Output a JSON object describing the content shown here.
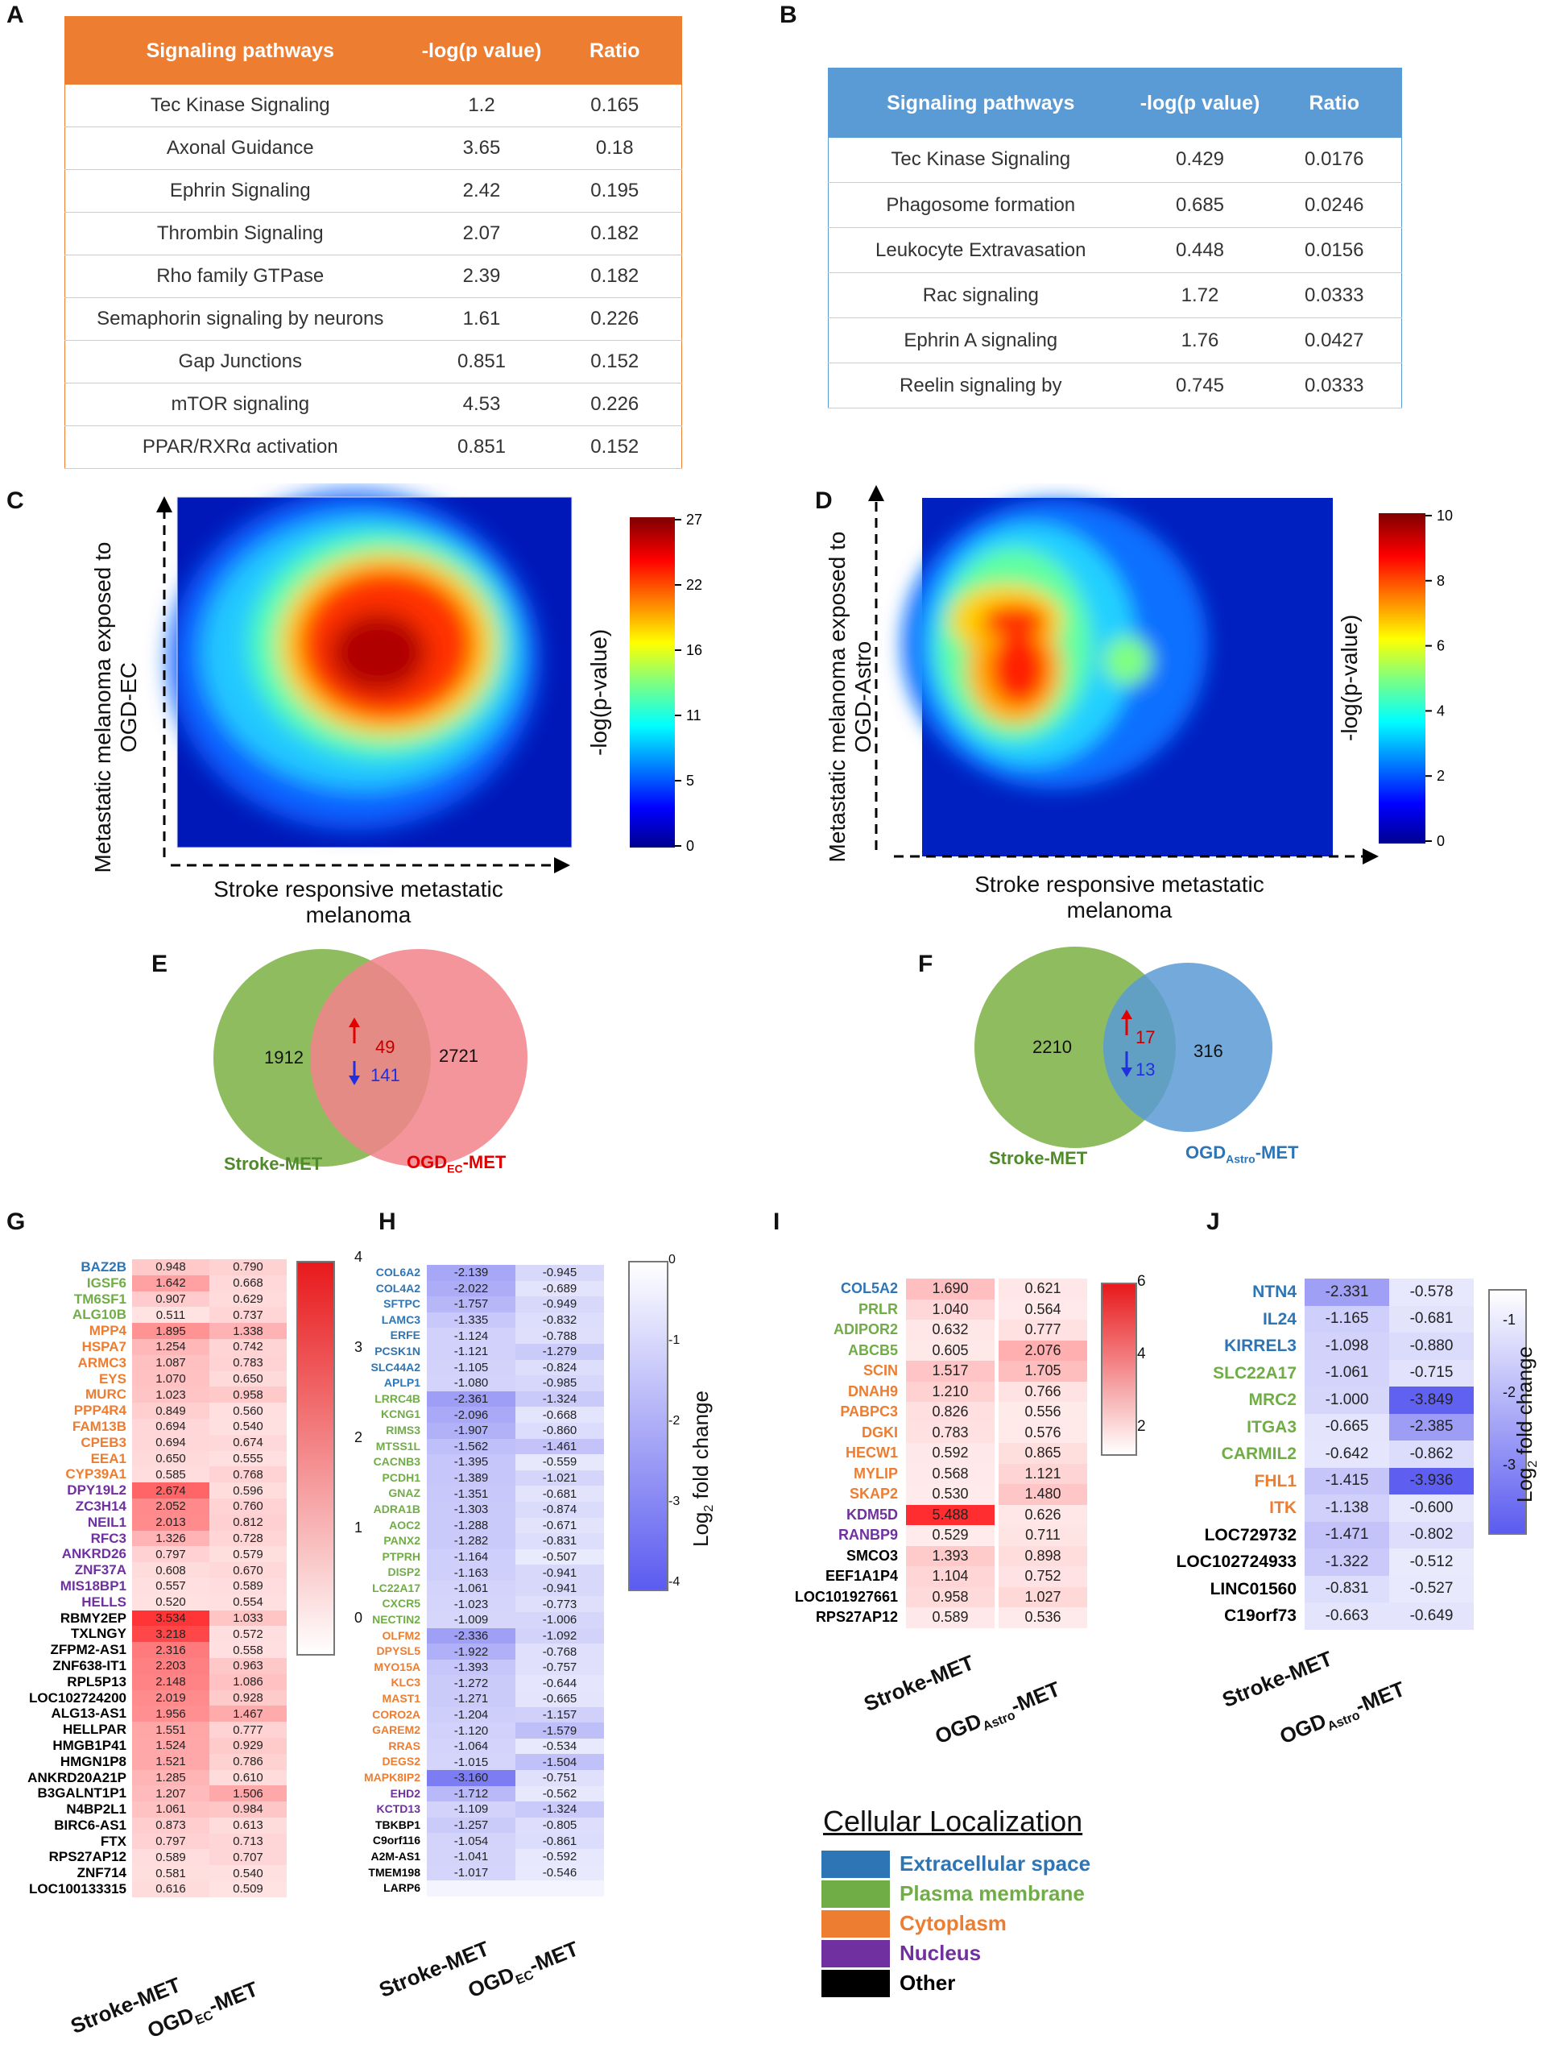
{
  "panels": {
    "A": "A",
    "B": "B",
    "C": "C",
    "D": "D",
    "E": "E",
    "F": "F",
    "G": "G",
    "H": "H",
    "I": "I",
    "J": "J"
  },
  "colors": {
    "orange": "#ed7d31",
    "blue": "#5b9bd5",
    "extracellular": "#2e75b6",
    "plasma": "#70ad47",
    "cytoplasm": "#ed7d31",
    "nucleus": "#7030a0",
    "other": "#000000",
    "venn_green": "#8fbc5f",
    "venn_red": "#f2838b",
    "venn_blue": "#5b9bd5"
  },
  "tableA": {
    "headers": [
      "Signaling  pathways",
      "-log(p value)",
      "Ratio"
    ],
    "rows": [
      [
        "Tec Kinase Signaling",
        "1.2",
        "0.165"
      ],
      [
        "Axonal Guidance",
        "3.65",
        "0.18"
      ],
      [
        "Ephrin Signaling",
        "2.42",
        "0.195"
      ],
      [
        "Thrombin Signaling",
        "2.07",
        "0.182"
      ],
      [
        "Rho family GTPase",
        "2.39",
        "0.182"
      ],
      [
        "Semaphorin signaling by neurons",
        "1.61",
        "0.226"
      ],
      [
        "Gap Junctions",
        "0.851",
        "0.152"
      ],
      [
        "mTOR  signaling",
        "4.53",
        "0.226"
      ],
      [
        "PPAR/RXRα  activation",
        "0.851",
        "0.152"
      ]
    ]
  },
  "tableB": {
    "headers": [
      "Signaling  pathways",
      "-log(p value)",
      "Ratio"
    ],
    "rows": [
      [
        "Tec Kinase Signaling",
        "0.429",
        "0.0176"
      ],
      [
        "Phagosome  formation",
        "0.685",
        "0.0246"
      ],
      [
        "Leukocyte Extravasation",
        "0.448",
        "0.0156"
      ],
      [
        "Rac signaling",
        "1.72",
        "0.0333"
      ],
      [
        "Ephrin A signaling",
        "1.76",
        "0.0427"
      ],
      [
        "Reelin signaling by",
        "0.745",
        "0.0333"
      ]
    ]
  },
  "panelC": {
    "ylabel1": "Metastatic melanoma exposed to",
    "ylabel2": "OGD-EC",
    "xlabel1": "Stroke responsive metastatic",
    "xlabel2": "melanoma",
    "cblabel": "-log(p-value)",
    "ticks": [
      "27",
      "22",
      "16",
      "11",
      "5",
      "0"
    ]
  },
  "panelD": {
    "ylabel1": "Metastatic melanoma exposed to",
    "ylabel2": "OGD-Astro",
    "xlabel1": "Stroke responsive metastatic",
    "xlabel2": "melanoma",
    "cblabel": "-log(p-value)",
    "ticks": [
      "10",
      "8",
      "6",
      "4",
      "2",
      "0"
    ]
  },
  "vennE": {
    "left": "1912",
    "up": "49",
    "down": "141",
    "right": "2721",
    "labelL": "Stroke-MET",
    "labelR_main": "OGD",
    "labelR_sub": "EC",
    "labelR_end": "-MET"
  },
  "vennF": {
    "left": "2210",
    "up": "17",
    "down": "13",
    "right": "316",
    "labelL": "Stroke-MET",
    "labelR_main": "OGD",
    "labelR_sub": "Astro",
    "labelR_end": "-MET"
  },
  "panelG": {
    "xlabels": [
      "Stroke-MET",
      "OGD",
      "EC",
      "-MET"
    ],
    "cbticks": [
      "4",
      "3",
      "2",
      "1",
      "0"
    ],
    "genes": [
      {
        "n": "BAZ2B",
        "c": "e",
        "a": "0.948",
        "b": "0.790"
      },
      {
        "n": "IGSF6",
        "c": "p",
        "a": "1.642",
        "b": "0.668"
      },
      {
        "n": "TM6SF1",
        "c": "p",
        "a": "0.907",
        "b": "0.629"
      },
      {
        "n": "ALG10B",
        "c": "p",
        "a": "0.511",
        "b": "0.737"
      },
      {
        "n": "MPP4",
        "c": "c",
        "a": "1.895",
        "b": "1.338"
      },
      {
        "n": "HSPA7",
        "c": "c",
        "a": "1.254",
        "b": "0.742"
      },
      {
        "n": "ARMC3",
        "c": "c",
        "a": "1.087",
        "b": "0.783"
      },
      {
        "n": "EYS",
        "c": "c",
        "a": "1.070",
        "b": "0.650"
      },
      {
        "n": "MURC",
        "c": "c",
        "a": "1.023",
        "b": "0.958"
      },
      {
        "n": "PPP4R4",
        "c": "c",
        "a": "0.849",
        "b": "0.560"
      },
      {
        "n": "FAM13B",
        "c": "c",
        "a": "0.694",
        "b": "0.540"
      },
      {
        "n": "CPEB3",
        "c": "c",
        "a": "0.694",
        "b": "0.674"
      },
      {
        "n": "EEA1",
        "c": "c",
        "a": "0.650",
        "b": "0.555"
      },
      {
        "n": "CYP39A1",
        "c": "c",
        "a": "0.585",
        "b": "0.768"
      },
      {
        "n": "DPY19L2",
        "c": "n",
        "a": "2.674",
        "b": "0.596"
      },
      {
        "n": "ZC3H14",
        "c": "n",
        "a": "2.052",
        "b": "0.760"
      },
      {
        "n": "NEIL1",
        "c": "n",
        "a": "2.013",
        "b": "0.812"
      },
      {
        "n": "RFC3",
        "c": "n",
        "a": "1.326",
        "b": "0.728"
      },
      {
        "n": "ANKRD26",
        "c": "n",
        "a": "0.797",
        "b": "0.579"
      },
      {
        "n": "ZNF37A",
        "c": "n",
        "a": "0.608",
        "b": "0.670"
      },
      {
        "n": "MIS18BP1",
        "c": "n",
        "a": "0.557",
        "b": "0.589"
      },
      {
        "n": "HELLS",
        "c": "n",
        "a": "0.520",
        "b": "0.554"
      },
      {
        "n": "RBMY2EP",
        "c": "o",
        "a": "3.534",
        "b": "1.033"
      },
      {
        "n": "TXLNGY",
        "c": "o",
        "a": "3.218",
        "b": "0.572"
      },
      {
        "n": "ZFPM2-AS1",
        "c": "o",
        "a": "2.316",
        "b": "0.558"
      },
      {
        "n": "ZNF638-IT1",
        "c": "o",
        "a": "2.203",
        "b": "0.963"
      },
      {
        "n": "RPL5P13",
        "c": "o",
        "a": "2.148",
        "b": "1.086"
      },
      {
        "n": "LOC102724200",
        "c": "o",
        "a": "2.019",
        "b": "0.928"
      },
      {
        "n": "ALG13-AS1",
        "c": "o",
        "a": "1.956",
        "b": "1.467"
      },
      {
        "n": "HELLPAR",
        "c": "o",
        "a": "1.551",
        "b": "0.777"
      },
      {
        "n": "HMGB1P41",
        "c": "o",
        "a": "1.524",
        "b": "0.929"
      },
      {
        "n": "HMGN1P8",
        "c": "o",
        "a": "1.521",
        "b": "0.786"
      },
      {
        "n": "ANKRD20A21P",
        "c": "o",
        "a": "1.285",
        "b": "0.610"
      },
      {
        "n": "B3GALNT1P1",
        "c": "o",
        "a": "1.207",
        "b": "1.506"
      },
      {
        "n": "N4BP2L1",
        "c": "o",
        "a": "1.061",
        "b": "0.984"
      },
      {
        "n": "BIRC6-AS1",
        "c": "o",
        "a": "0.873",
        "b": "0.613"
      },
      {
        "n": "FTX",
        "c": "o",
        "a": "0.797",
        "b": "0.713"
      },
      {
        "n": "RPS27AP12",
        "c": "o",
        "a": "0.589",
        "b": "0.707"
      },
      {
        "n": "ZNF714",
        "c": "o",
        "a": "0.581",
        "b": "0.540"
      },
      {
        "n": "LOC100133315",
        "c": "o",
        "a": "0.616",
        "b": "0.509"
      }
    ]
  },
  "panelH": {
    "xlabels": [
      "Stroke-MET",
      "OGD",
      "EC",
      "-MET"
    ],
    "cbticks": [
      "0",
      "-1",
      "-2",
      "-3",
      "-4"
    ],
    "cblabel_main": "Log",
    "cblabel_sub": "2",
    "cblabel_end": " fold change",
    "genes": [
      {
        "n": "COL6A2",
        "c": "e",
        "a": "-2.139",
        "b": "-0.945"
      },
      {
        "n": "COL4A2",
        "c": "e",
        "a": "-2.022",
        "b": "-0.689"
      },
      {
        "n": "SFTPC",
        "c": "e",
        "a": "-1.757",
        "b": "-0.949"
      },
      {
        "n": "LAMC3",
        "c": "e",
        "a": "-1.335",
        "b": "-0.832"
      },
      {
        "n": "ERFE",
        "c": "e",
        "a": "-1.124",
        "b": "-0.788"
      },
      {
        "n": "PCSK1N",
        "c": "e",
        "a": "-1.121",
        "b": "-1.279"
      },
      {
        "n": "SLC44A2",
        "c": "e",
        "a": "-1.105",
        "b": "-0.824"
      },
      {
        "n": "APLP1",
        "c": "e",
        "a": "-1.080",
        "b": "-0.985"
      },
      {
        "n": "LRRC4B",
        "c": "p",
        "a": "-2.361",
        "b": "-1.324"
      },
      {
        "n": "KCNG1",
        "c": "p",
        "a": "-2.096",
        "b": "-0.668"
      },
      {
        "n": "RIMS3",
        "c": "p",
        "a": "-1.907",
        "b": "-0.860"
      },
      {
        "n": "MTSS1L",
        "c": "p",
        "a": "-1.562",
        "b": "-1.461"
      },
      {
        "n": "CACNB3",
        "c": "p",
        "a": "-1.395",
        "b": "-0.559"
      },
      {
        "n": "PCDH1",
        "c": "p",
        "a": "-1.389",
        "b": "-1.021"
      },
      {
        "n": "GNAZ",
        "c": "p",
        "a": "-1.351",
        "b": "-0.681"
      },
      {
        "n": "ADRA1B",
        "c": "p",
        "a": "-1.303",
        "b": "-0.874"
      },
      {
        "n": "AOC2",
        "c": "p",
        "a": "-1.288",
        "b": "-0.671"
      },
      {
        "n": "PANX2",
        "c": "p",
        "a": "-1.282",
        "b": "-0.831"
      },
      {
        "n": "PTPRH",
        "c": "p",
        "a": "-1.164",
        "b": "-0.507"
      },
      {
        "n": "DISP2",
        "c": "p",
        "a": "-1.163",
        "b": "-0.941"
      },
      {
        "n": "LC22A17",
        "c": "p",
        "a": "-1.061",
        "b": "-0.941"
      },
      {
        "n": "CXCR5",
        "c": "p",
        "a": "-1.023",
        "b": "-0.773"
      },
      {
        "n": "NECTIN2",
        "c": "p",
        "a": "-1.009",
        "b": "-1.006"
      },
      {
        "n": "OLFM2",
        "c": "c",
        "a": "-2.336",
        "b": "-1.092"
      },
      {
        "n": "DPYSL5",
        "c": "c",
        "a": "-1.922",
        "b": "-0.768"
      },
      {
        "n": "MYO15A",
        "c": "c",
        "a": "-1.393",
        "b": "-0.757"
      },
      {
        "n": "KLC3",
        "c": "c",
        "a": "-1.272",
        "b": "-0.644"
      },
      {
        "n": "MAST1",
        "c": "c",
        "a": "-1.271",
        "b": "-0.665"
      },
      {
        "n": "CORO2A",
        "c": "c",
        "a": "-1.204",
        "b": "-1.157"
      },
      {
        "n": "GAREM2",
        "c": "c",
        "a": "-1.120",
        "b": "-1.579"
      },
      {
        "n": "RRAS",
        "c": "c",
        "a": "-1.064",
        "b": "-0.534"
      },
      {
        "n": "DEGS2",
        "c": "c",
        "a": "-1.015",
        "b": "-1.504"
      },
      {
        "n": "MAPK8IP2",
        "c": "c",
        "a": "-3.160",
        "b": "-0.751"
      },
      {
        "n": "EHD2",
        "c": "n",
        "a": "-1.712",
        "b": "-0.562"
      },
      {
        "n": "KCTD13",
        "c": "n",
        "a": "-1.109",
        "b": "-1.324"
      },
      {
        "n": "TBKBP1",
        "c": "o",
        "a": "-1.257",
        "b": "-0.805"
      },
      {
        "n": "C9orf116",
        "c": "o",
        "a": "-1.054",
        "b": "-0.861"
      },
      {
        "n": "A2M-AS1",
        "c": "o",
        "a": "-1.041",
        "b": "-0.592"
      },
      {
        "n": "TMEM198",
        "c": "o",
        "a": "-1.017",
        "b": "-0.546"
      },
      {
        "n": "LARP6",
        "c": "o",
        "a": "",
        "b": ""
      }
    ]
  },
  "panelI": {
    "xlabels": [
      "Stroke-MET",
      "OGD",
      "Astro",
      "-MET"
    ],
    "cbticks": [
      "6",
      "4",
      "2"
    ],
    "genes": [
      {
        "n": "COL5A2",
        "c": "e",
        "a": "1.690",
        "b": "0.621"
      },
      {
        "n": "PRLR",
        "c": "p",
        "a": "1.040",
        "b": "0.564"
      },
      {
        "n": "ADIPOR2",
        "c": "p",
        "a": "0.632",
        "b": "0.777"
      },
      {
        "n": "ABCB5",
        "c": "p",
        "a": "0.605",
        "b": "2.076"
      },
      {
        "n": "SCIN",
        "c": "c",
        "a": "1.517",
        "b": "1.705"
      },
      {
        "n": "DNAH9",
        "c": "c",
        "a": "1.210",
        "b": "0.766"
      },
      {
        "n": "PABPC3",
        "c": "c",
        "a": "0.826",
        "b": "0.556"
      },
      {
        "n": "DGKI",
        "c": "c",
        "a": "0.783",
        "b": "0.576"
      },
      {
        "n": "HECW1",
        "c": "c",
        "a": "0.592",
        "b": "0.865"
      },
      {
        "n": "MYLIP",
        "c": "c",
        "a": "0.568",
        "b": "1.121"
      },
      {
        "n": "SKAP2",
        "c": "c",
        "a": "0.530",
        "b": "1.480"
      },
      {
        "n": "KDM5D",
        "c": "n",
        "a": "5.488",
        "b": "0.626"
      },
      {
        "n": "RANBP9",
        "c": "n",
        "a": "0.529",
        "b": "0.711"
      },
      {
        "n": "SMCO3",
        "c": "o",
        "a": "1.393",
        "b": "0.898"
      },
      {
        "n": "EEF1A1P4",
        "c": "o",
        "a": "1.104",
        "b": "0.752"
      },
      {
        "n": "LOC101927661",
        "c": "o",
        "a": "0.958",
        "b": "1.027"
      },
      {
        "n": "RPS27AP12",
        "c": "o",
        "a": "0.589",
        "b": "0.536"
      }
    ]
  },
  "panelJ": {
    "xlabels": [
      "Stroke-MET",
      "OGD",
      "Astro",
      "-MET"
    ],
    "cbticks": [
      "-1",
      "-2",
      "-3"
    ],
    "cblabel_main": "Log",
    "cblabel_sub": "2",
    "cblabel_end": " fold change",
    "genes": [
      {
        "n": "NTN4",
        "c": "e",
        "a": "-2.331",
        "b": "-0.578"
      },
      {
        "n": "IL24",
        "c": "e",
        "a": "-1.165",
        "b": "-0.681"
      },
      {
        "n": "KIRREL3",
        "c": "e",
        "a": "-1.098",
        "b": "-0.880"
      },
      {
        "n": "SLC22A17",
        "c": "p",
        "a": "-1.061",
        "b": "-0.715"
      },
      {
        "n": "MRC2",
        "c": "p",
        "a": "-1.000",
        "b": "-3.849"
      },
      {
        "n": "ITGA3",
        "c": "p",
        "a": "-0.665",
        "b": "-2.385"
      },
      {
        "n": "CARMIL2",
        "c": "p",
        "a": "-0.642",
        "b": "-0.862"
      },
      {
        "n": "FHL1",
        "c": "c",
        "a": "-1.415",
        "b": "-3.936"
      },
      {
        "n": "ITK",
        "c": "c",
        "a": "-1.138",
        "b": "-0.600"
      },
      {
        "n": "LOC729732",
        "c": "o",
        "a": "-1.471",
        "b": "-0.802"
      },
      {
        "n": "LOC102724933",
        "c": "o",
        "a": "-1.322",
        "b": "-0.512"
      },
      {
        "n": "LINC01560",
        "c": "o",
        "a": "-0.831",
        "b": "-0.527"
      },
      {
        "n": "C19orf73",
        "c": "o",
        "a": "-0.663",
        "b": "-0.649"
      }
    ]
  },
  "legend": {
    "title": "Cellular  Localization",
    "items": [
      {
        "label": "Extracellular space",
        "key": "e"
      },
      {
        "label": "Plasma membrane",
        "key": "p"
      },
      {
        "label": "Cytoplasm",
        "key": "c"
      },
      {
        "label": "Nucleus",
        "key": "n"
      },
      {
        "label": "Other",
        "key": "o"
      }
    ]
  }
}
